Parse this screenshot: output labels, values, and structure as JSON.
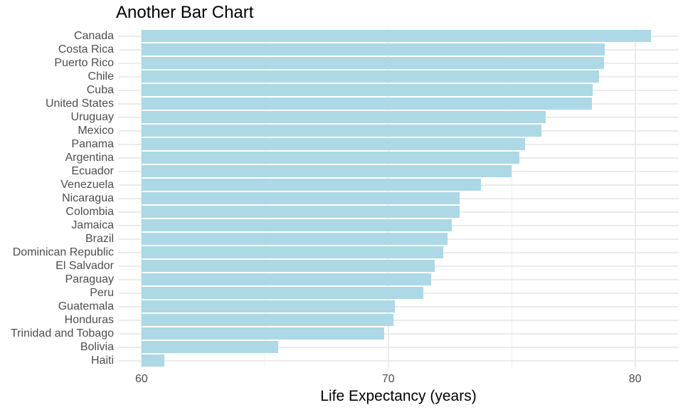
{
  "title": "Another Bar Chart",
  "chart_data": {
    "type": "bar",
    "orientation": "horizontal",
    "title": "Another Bar Chart",
    "xlabel": "Life Expectancy (years)",
    "ylabel": "",
    "categories": [
      "Canada",
      "Costa Rica",
      "Puerto Rico",
      "Chile",
      "Cuba",
      "United States",
      "Uruguay",
      "Mexico",
      "Panama",
      "Argentina",
      "Ecuador",
      "Venezuela",
      "Nicaragua",
      "Colombia",
      "Jamaica",
      "Brazil",
      "Dominican Republic",
      "El Salvador",
      "Paraguay",
      "Peru",
      "Guatemala",
      "Honduras",
      "Trinidad and Tobago",
      "Bolivia",
      "Haiti"
    ],
    "values": [
      80.65,
      78.78,
      78.75,
      78.55,
      78.27,
      78.24,
      76.38,
      76.2,
      75.54,
      75.32,
      74.99,
      73.75,
      72.9,
      72.89,
      72.57,
      72.39,
      72.24,
      71.88,
      71.75,
      71.42,
      70.26,
      70.2,
      69.82,
      65.55,
      60.92
    ],
    "bar_base": 60,
    "xlim": [
      59.05,
      81.77
    ],
    "x_major_ticks": [
      60,
      70,
      80
    ],
    "x_minor_ticks": [
      65,
      75
    ],
    "x_tick_labels": [
      "60",
      "70",
      "80"
    ],
    "grid": true,
    "legend": false,
    "bar_width_fraction": 0.9,
    "colors": {
      "bar_fill": "#ADD8E6",
      "grid_major": "#EBEBEB",
      "grid_minor": "#F0F0F0",
      "axis_text": "#4D4D4D",
      "title_color": "#000000",
      "background": "#FFFFFF"
    }
  }
}
